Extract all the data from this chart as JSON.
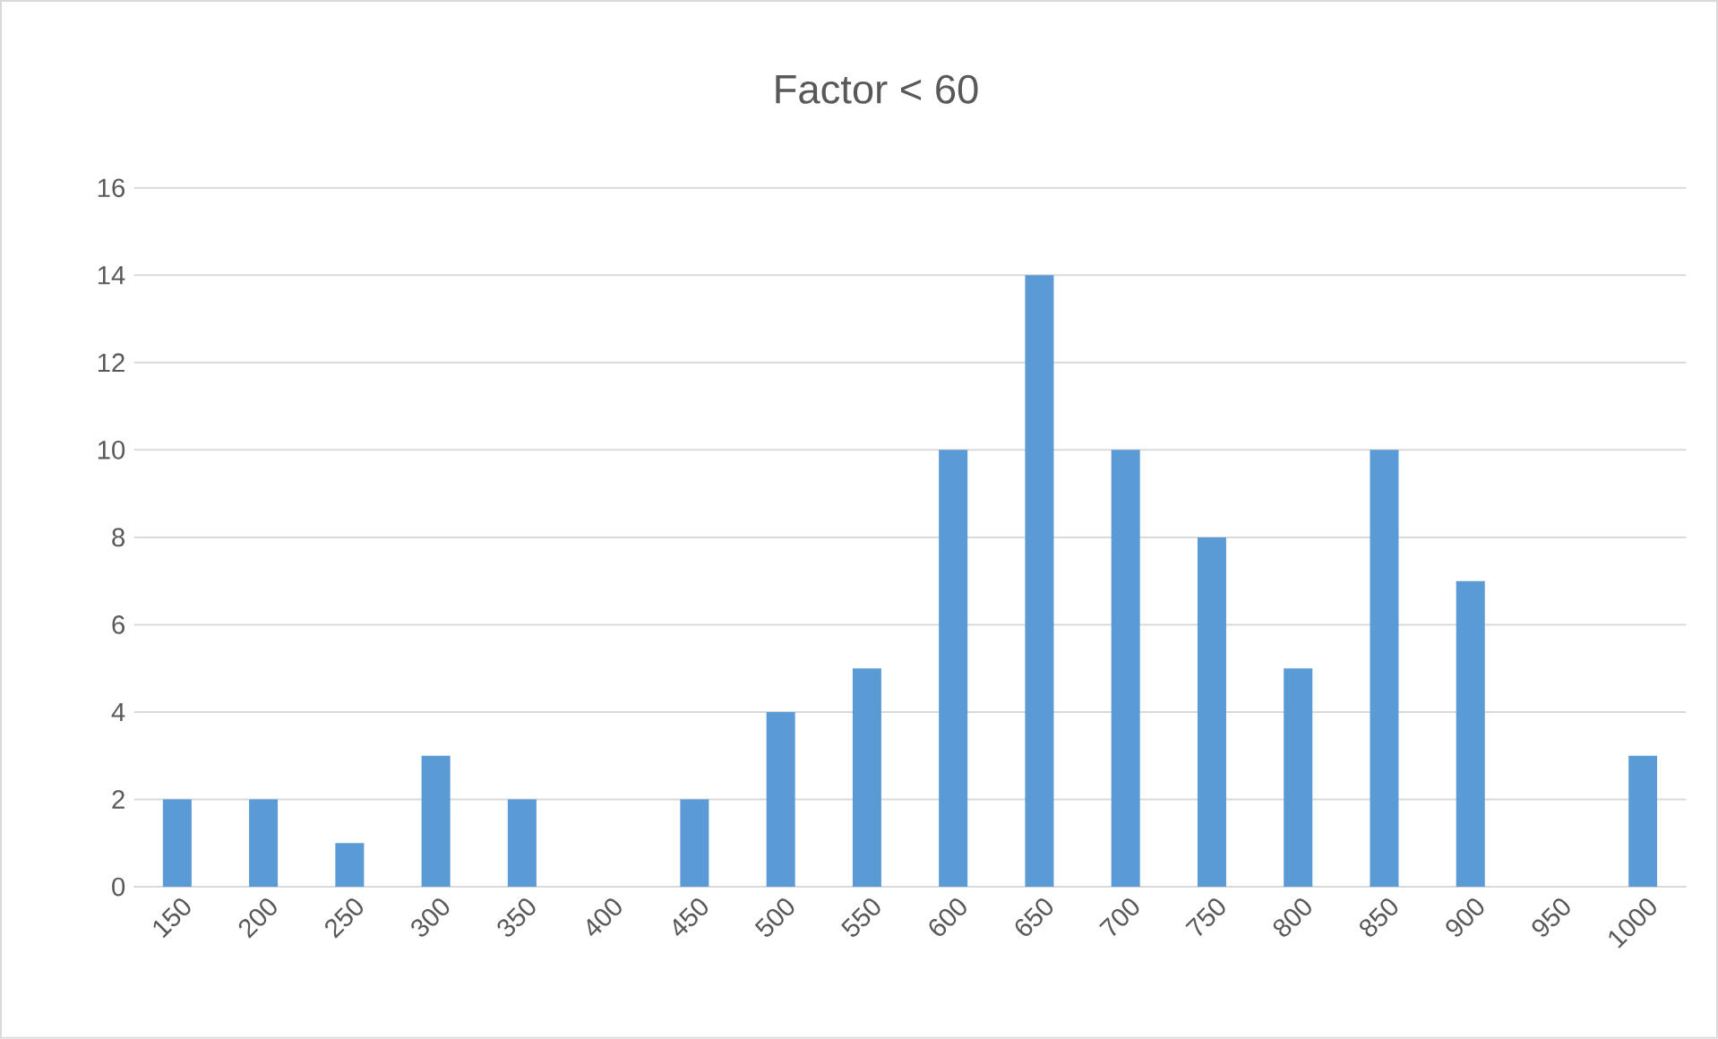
{
  "chart_data": {
    "type": "bar",
    "title": "Factor < 60",
    "categories": [
      "150",
      "200",
      "250",
      "300",
      "350",
      "400",
      "450",
      "500",
      "550",
      "600",
      "650",
      "700",
      "750",
      "800",
      "850",
      "900",
      "950",
      "1000"
    ],
    "values": [
      2,
      2,
      1,
      3,
      2,
      0,
      2,
      4,
      5,
      10,
      14,
      10,
      8,
      5,
      10,
      7,
      0,
      3
    ],
    "color": "#5b9bd5",
    "ylim": [
      0,
      16
    ],
    "yticks": [
      0,
      2,
      4,
      6,
      8,
      10,
      12,
      14,
      16
    ],
    "grid": "y"
  }
}
